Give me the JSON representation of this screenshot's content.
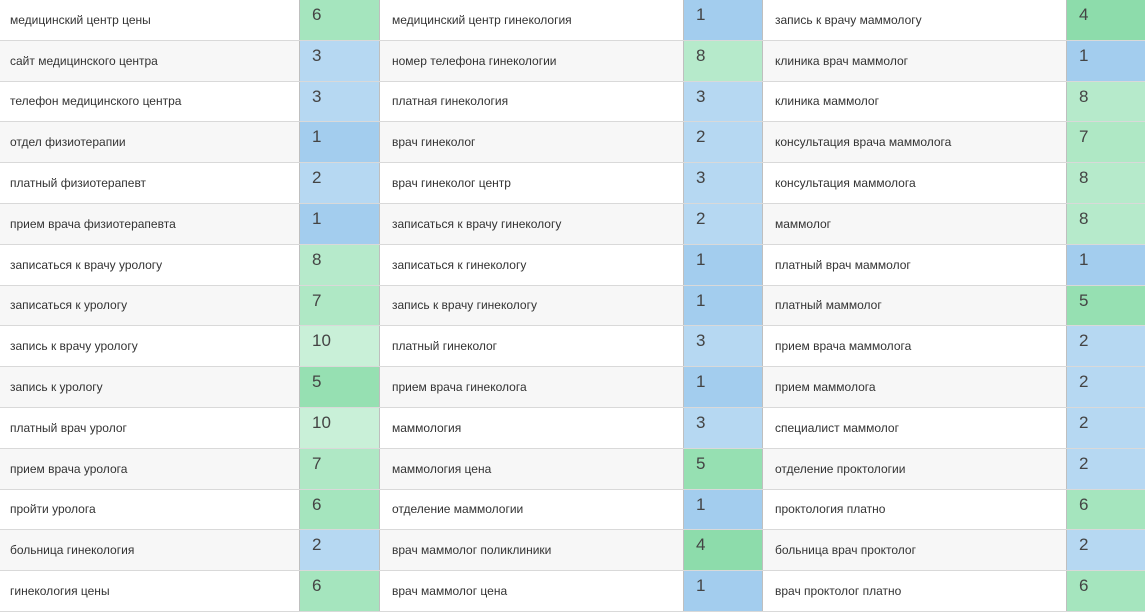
{
  "columns": [
    {
      "rows": [
        {
          "keyword": "медицинский центр цены",
          "value": 6
        },
        {
          "keyword": "сайт медицинского центра",
          "value": 3
        },
        {
          "keyword": "телефон медицинского центра",
          "value": 3
        },
        {
          "keyword": "отдел физиотерапии",
          "value": 1
        },
        {
          "keyword": "платный физиотерапевт",
          "value": 2
        },
        {
          "keyword": "прием врача физиотерапевта",
          "value": 1
        },
        {
          "keyword": "записаться к врачу урологу",
          "value": 8
        },
        {
          "keyword": "записаться к урологу",
          "value": 7
        },
        {
          "keyword": "запись к врачу урологу",
          "value": 10
        },
        {
          "keyword": "запись к урологу",
          "value": 5
        },
        {
          "keyword": "платный врач уролог",
          "value": 10
        },
        {
          "keyword": "прием врача уролога",
          "value": 7
        },
        {
          "keyword": "пройти уролога",
          "value": 6
        },
        {
          "keyword": "больница гинекология",
          "value": 2
        },
        {
          "keyword": "гинекология цены",
          "value": 6
        }
      ]
    },
    {
      "rows": [
        {
          "keyword": "медицинский центр гинекология",
          "value": 1
        },
        {
          "keyword": "номер телефона гинекологии",
          "value": 8
        },
        {
          "keyword": "платная гинекология",
          "value": 3
        },
        {
          "keyword": "врач гинеколог",
          "value": 2
        },
        {
          "keyword": "врач гинеколог центр",
          "value": 3
        },
        {
          "keyword": "записаться к врачу гинекологу",
          "value": 2
        },
        {
          "keyword": "записаться к гинекологу",
          "value": 1
        },
        {
          "keyword": "запись к врачу гинекологу",
          "value": 1
        },
        {
          "keyword": "платный гинеколог",
          "value": 3
        },
        {
          "keyword": "прием врача гинеколога",
          "value": 1
        },
        {
          "keyword": "маммология",
          "value": 3
        },
        {
          "keyword": "маммология цена",
          "value": 5
        },
        {
          "keyword": "отделение маммологии",
          "value": 1
        },
        {
          "keyword": "врач маммолог поликлиники",
          "value": 4
        },
        {
          "keyword": "врач маммолог цена",
          "value": 1
        }
      ]
    },
    {
      "rows": [
        {
          "keyword": "запись к врачу маммологу",
          "value": 4
        },
        {
          "keyword": "клиника врач маммолог",
          "value": 1
        },
        {
          "keyword": "клиника маммолог",
          "value": 8
        },
        {
          "keyword": "консультация врача маммолога",
          "value": 7
        },
        {
          "keyword": "консультация маммолога",
          "value": 8
        },
        {
          "keyword": "маммолог",
          "value": 8
        },
        {
          "keyword": "платный врач маммолог",
          "value": 1
        },
        {
          "keyword": "платный маммолог",
          "value": 5
        },
        {
          "keyword": "прием врача маммолога",
          "value": 2
        },
        {
          "keyword": "прием маммолога",
          "value": 2
        },
        {
          "keyword": "специалист маммолог",
          "value": 2
        },
        {
          "keyword": "отделение проктологии",
          "value": 2
        },
        {
          "keyword": "проктология платно",
          "value": 6
        },
        {
          "keyword": "больница врач проктолог",
          "value": 2
        },
        {
          "keyword": "врач проктолог платно",
          "value": 6
        }
      ]
    }
  ]
}
